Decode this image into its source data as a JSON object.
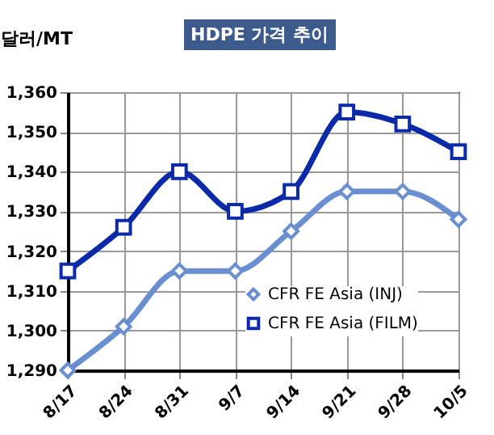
{
  "chart_data": {
    "type": "line",
    "title": "HDPE 가격 추이",
    "ylabel": "달러/MT",
    "categories": [
      "8/17",
      "8/24",
      "8/31",
      "9/7",
      "9/14",
      "9/21",
      "9/28",
      "10/5"
    ],
    "series": [
      {
        "name": "CFR FE Asia (INJ)",
        "color": "#6a8fd0",
        "marker": "diamond",
        "values": [
          1290,
          1301,
          1315,
          1315,
          1325,
          1335,
          1335,
          1328
        ]
      },
      {
        "name": "CFR FE Asia (FILM)",
        "color": "#0a2aa8",
        "marker": "square",
        "values": [
          1315,
          1326,
          1340,
          1330,
          1335,
          1355,
          1352,
          1345
        ]
      }
    ],
    "ylim": [
      1290,
      1360
    ],
    "yticks": [
      {
        "value": 1290,
        "label": "1,290"
      },
      {
        "value": 1300,
        "label": "1,300"
      },
      {
        "value": 1310,
        "label": "1,310"
      },
      {
        "value": 1320,
        "label": "1,320"
      },
      {
        "value": 1330,
        "label": "1,330"
      },
      {
        "value": 1340,
        "label": "1,340"
      },
      {
        "value": 1350,
        "label": "1,350"
      },
      {
        "value": 1360,
        "label": "1,360"
      }
    ],
    "grid": true,
    "legend": "bottom right"
  }
}
